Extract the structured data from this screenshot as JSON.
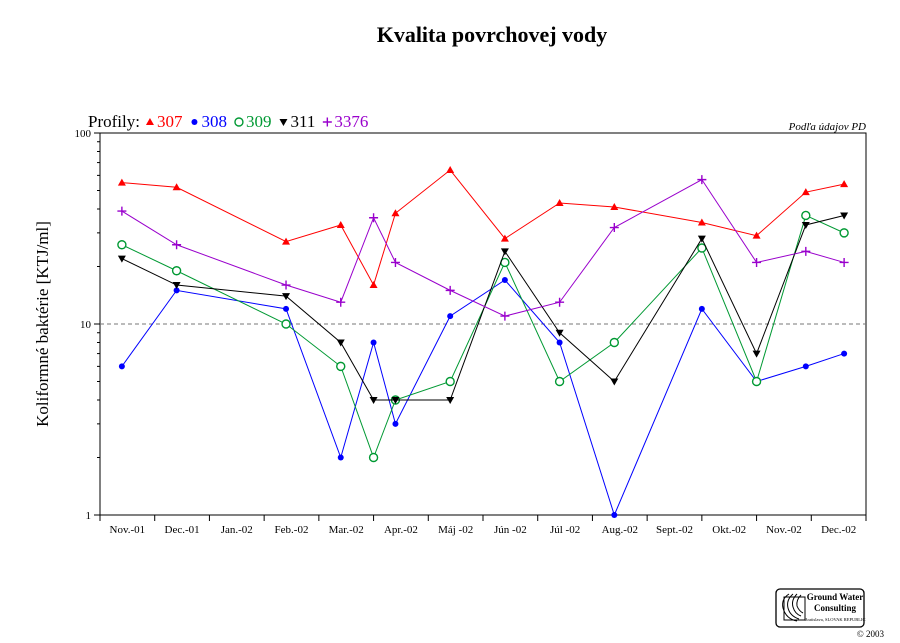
{
  "chart_data": {
    "type": "line",
    "title": "Kvalita povrchovej vody",
    "ylabel": "Koliformné baktérie [KTJ/ml]",
    "xlabel": "",
    "yscale": "log",
    "ylim": [
      1,
      100
    ],
    "yticks": [
      "1",
      "10",
      "100"
    ],
    "reference_line": 10,
    "grid": false,
    "legend_prefix": "Profily:",
    "legend_placement": "top-left",
    "source_note": "Podľa údajov PD",
    "categories": [
      "Nov.-01",
      "Dec.-01",
      "Jan.-02",
      "Feb.-02",
      "Mar.-02",
      "Apr.-02",
      "Máj -02",
      "Jún -02",
      "Júl -02",
      "Aug.-02",
      "Sept.-02",
      "Okt.-02",
      "Nov.-02",
      "Dec.-02"
    ],
    "series": [
      {
        "name": "307",
        "color": "#ff0000",
        "marker": "triangle-up",
        "points": [
          [
            0.4,
            55
          ],
          [
            1.4,
            52
          ],
          [
            3.4,
            27
          ],
          [
            4.4,
            33
          ],
          [
            5.0,
            16
          ],
          [
            5.4,
            38
          ],
          [
            6.4,
            64
          ],
          [
            7.4,
            28
          ],
          [
            8.4,
            43
          ],
          [
            9.4,
            41
          ],
          [
            11.0,
            34
          ],
          [
            12.0,
            29
          ],
          [
            12.9,
            49
          ],
          [
            13.6,
            54
          ]
        ]
      },
      {
        "name": "308",
        "color": "#0000ff",
        "marker": "circle",
        "points": [
          [
            0.4,
            6
          ],
          [
            1.4,
            15
          ],
          [
            3.4,
            12
          ],
          [
            4.4,
            2
          ],
          [
            5.0,
            8
          ],
          [
            5.4,
            3
          ],
          [
            6.4,
            11
          ],
          [
            7.4,
            17
          ],
          [
            8.4,
            8
          ],
          [
            9.4,
            1
          ],
          [
            11.0,
            12
          ],
          [
            12.0,
            5
          ],
          [
            12.9,
            6
          ],
          [
            13.6,
            7
          ]
        ]
      },
      {
        "name": "309",
        "color": "#009933",
        "marker": "circle-open",
        "points": [
          [
            0.4,
            26
          ],
          [
            1.4,
            19
          ],
          [
            3.4,
            10
          ],
          [
            4.4,
            6
          ],
          [
            5.0,
            2
          ],
          [
            5.4,
            4
          ],
          [
            6.4,
            5
          ],
          [
            7.4,
            21
          ],
          [
            8.4,
            5
          ],
          [
            9.4,
            8
          ],
          [
            11.0,
            25
          ],
          [
            12.0,
            5
          ],
          [
            12.9,
            37
          ],
          [
            13.6,
            30
          ]
        ]
      },
      {
        "name": "311",
        "color": "#000000",
        "marker": "triangle-down",
        "points": [
          [
            0.4,
            22
          ],
          [
            1.4,
            16
          ],
          [
            3.4,
            14
          ],
          [
            4.4,
            8
          ],
          [
            5.0,
            4
          ],
          [
            5.4,
            4
          ],
          [
            6.4,
            4
          ],
          [
            7.4,
            24
          ],
          [
            8.4,
            9
          ],
          [
            9.4,
            5
          ],
          [
            11.0,
            28
          ],
          [
            12.0,
            7
          ],
          [
            12.9,
            33
          ],
          [
            13.6,
            37
          ]
        ]
      },
      {
        "name": "3376",
        "color": "#9900cc",
        "marker": "plus",
        "points": [
          [
            0.4,
            39
          ],
          [
            1.4,
            26
          ],
          [
            3.4,
            16
          ],
          [
            4.4,
            13
          ],
          [
            5.0,
            36
          ],
          [
            5.4,
            21
          ],
          [
            6.4,
            15
          ],
          [
            7.4,
            11
          ],
          [
            8.4,
            13
          ],
          [
            9.4,
            32
          ],
          [
            11.0,
            57
          ],
          [
            12.0,
            21
          ],
          [
            12.9,
            24
          ],
          [
            13.6,
            21
          ]
        ]
      }
    ]
  },
  "logo": {
    "line1": "Ground Water",
    "line2": "Consulting",
    "line3": "Bratislava, SLOVAK REPUBLIC",
    "copyright": "© 2003"
  }
}
